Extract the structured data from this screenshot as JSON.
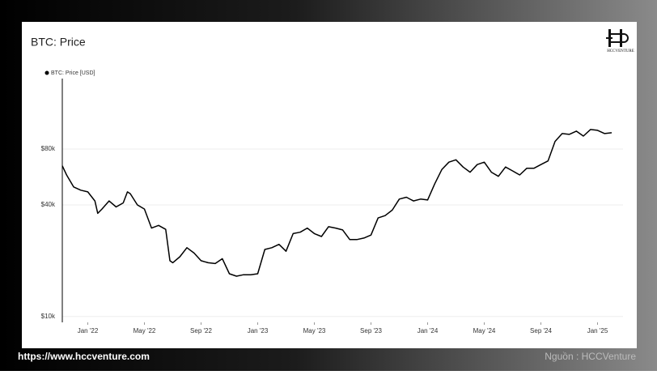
{
  "chart_data": {
    "type": "line",
    "title": "BTC: Price",
    "yscale": "log",
    "grid": true,
    "legend": "top-left",
    "x": [
      -1.8,
      -1.5,
      -1,
      -0.5,
      0,
      0.5,
      0.7,
      1,
      1.5,
      2,
      2.5,
      2.8,
      3,
      3.5,
      4,
      4.5,
      5,
      5.5,
      5.8,
      6,
      6.5,
      7,
      7.5,
      8,
      8.5,
      9,
      9.5,
      10,
      10.5,
      11,
      11.5,
      12,
      12.5,
      13,
      13.5,
      14,
      14.5,
      15,
      15.5,
      16,
      16.5,
      17,
      17.5,
      18,
      18.5,
      19,
      19.5,
      20,
      20.5,
      21,
      21.5,
      22,
      22.5,
      23,
      23.5,
      24,
      24.5,
      25,
      25.5,
      26,
      26.5,
      27,
      27.5,
      28,
      28.5,
      29,
      29.5,
      30,
      30.5,
      31,
      31.5,
      32,
      32.5,
      33,
      33.5,
      34,
      34.5,
      35,
      35.5,
      36,
      36.5,
      37
    ],
    "series": [
      {
        "name": "BTC: Price [USD]",
        "color": "#000000",
        "values": [
          65000,
          58000,
          50000,
          48000,
          47000,
          42000,
          36000,
          38000,
          42000,
          39000,
          41000,
          47000,
          46000,
          40000,
          38000,
          30000,
          31000,
          29500,
          20000,
          19500,
          21000,
          23500,
          22000,
          20000,
          19500,
          19300,
          20500,
          17000,
          16500,
          16800,
          16800,
          17000,
          23000,
          23500,
          24500,
          22500,
          28000,
          28500,
          30000,
          28000,
          27000,
          30500,
          30000,
          29300,
          26000,
          26000,
          26500,
          27500,
          34000,
          35000,
          37500,
          43000,
          44000,
          42000,
          43000,
          42500,
          52000,
          62000,
          68000,
          70000,
          64000,
          60000,
          66000,
          68000,
          60000,
          57000,
          64000,
          61000,
          58000,
          63000,
          63000,
          66000,
          69000,
          88000,
          97000,
          96000,
          100000,
          94000,
          102000,
          101000,
          97000,
          98000
        ]
      }
    ],
    "xlim": [
      -1.8,
      37.8
    ],
    "xticks": [
      {
        "value": 0,
        "label": "Jan '22"
      },
      {
        "value": 4,
        "label": "May '22"
      },
      {
        "value": 8,
        "label": "Sep '22"
      },
      {
        "value": 12,
        "label": "Jan '23"
      },
      {
        "value": 16,
        "label": "May '23"
      },
      {
        "value": 20,
        "label": "Sep '23"
      },
      {
        "value": 24,
        "label": "Jan '24"
      },
      {
        "value": 28,
        "label": "May '24"
      },
      {
        "value": 32,
        "label": "Sep '24"
      },
      {
        "value": 36,
        "label": "Jan '25"
      }
    ],
    "ylim": [
      9300,
      192000
    ],
    "yticks": [
      {
        "value": 10000,
        "label": "$10k"
      },
      {
        "value": 40000,
        "label": "$40k"
      },
      {
        "value": 80000,
        "label": "$80k"
      }
    ]
  },
  "logo": "HCCVENTURE",
  "footer": {
    "url": "https://www.hccventure.com",
    "source": "Nguồn : HCCVenture"
  }
}
